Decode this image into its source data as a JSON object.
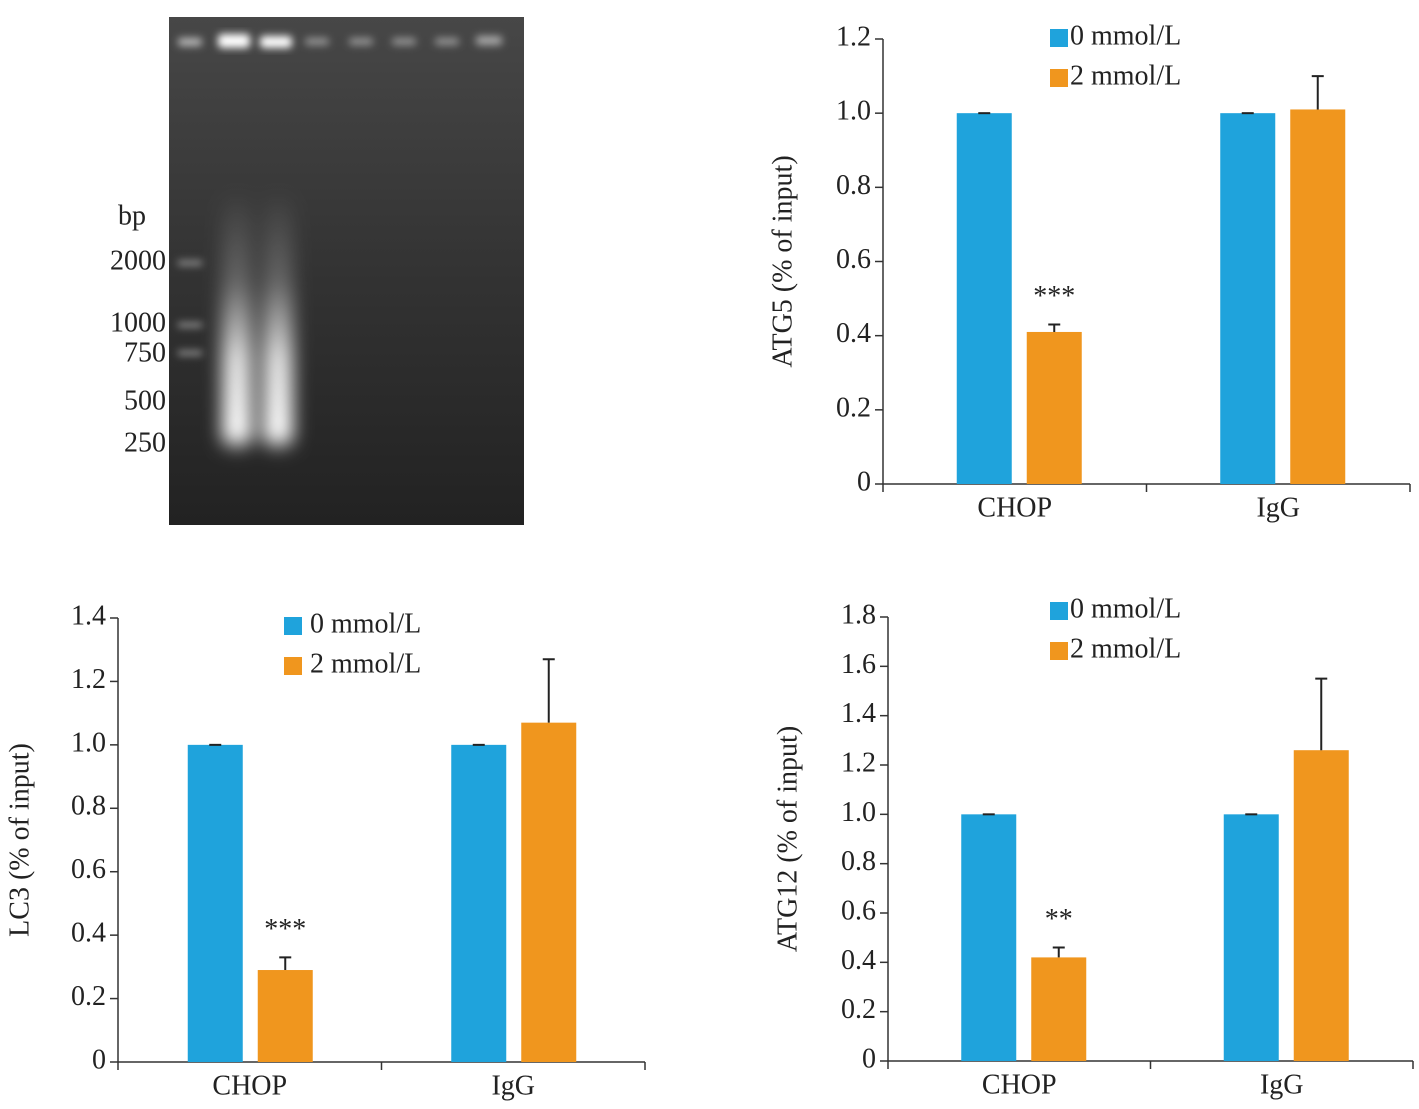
{
  "gel": {
    "unit_label": "bp",
    "markers": [
      "2000",
      "1000",
      "750",
      "500",
      "250"
    ]
  },
  "chart_data": [
    {
      "type": "bar",
      "ylabel": "ATG5 (% of input)",
      "categories": [
        "CHOP",
        "IgG"
      ],
      "series": [
        {
          "name": "0 mmol/L",
          "color": "#1fa3dc",
          "values": [
            1.0,
            1.0
          ],
          "errors": [
            0,
            0
          ]
        },
        {
          "name": "2 mmol/L",
          "color": "#f0961e",
          "values": [
            0.41,
            1.01
          ],
          "errors": [
            0.02,
            0.09
          ],
          "significance": [
            "***",
            null
          ]
        }
      ],
      "ylim": [
        0,
        1.2
      ],
      "yticks": [
        0,
        0.2,
        0.4,
        0.6,
        0.8,
        {
          "value": 1,
          "label": "1.0"
        },
        1.2
      ],
      "legend": "top"
    },
    {
      "type": "bar",
      "ylabel": "LC3 (% of input)",
      "categories": [
        "CHOP",
        "IgG"
      ],
      "series": [
        {
          "name": "0 mmol/L",
          "color": "#1fa3dc",
          "values": [
            1.0,
            1.0
          ],
          "errors": [
            0,
            0
          ]
        },
        {
          "name": "2 mmol/L",
          "color": "#f0961e",
          "values": [
            0.29,
            1.07
          ],
          "errors": [
            0.04,
            0.2
          ],
          "significance": [
            "***",
            null
          ]
        }
      ],
      "ylim": [
        0,
        1.4
      ],
      "yticks": [
        0,
        0.2,
        0.4,
        0.6,
        0.8,
        {
          "value": 1,
          "label": "1.0"
        },
        1.2,
        1.4
      ],
      "legend": "top"
    },
    {
      "type": "bar",
      "ylabel": "ATG12 (% of input)",
      "categories": [
        "CHOP",
        "IgG"
      ],
      "series": [
        {
          "name": "0 mmol/L",
          "color": "#1fa3dc",
          "values": [
            1.0,
            1.0
          ],
          "errors": [
            0,
            0
          ]
        },
        {
          "name": "2 mmol/L",
          "color": "#f0961e",
          "values": [
            0.42,
            1.26
          ],
          "errors": [
            0.04,
            0.29
          ],
          "significance": [
            "**",
            null
          ]
        }
      ],
      "ylim": [
        0,
        1.8
      ],
      "yticks": [
        0,
        0.2,
        0.4,
        0.6,
        0.8,
        {
          "value": 1,
          "label": "1.0"
        },
        1.2,
        1.4,
        1.6,
        1.8
      ],
      "legend": "top"
    }
  ]
}
